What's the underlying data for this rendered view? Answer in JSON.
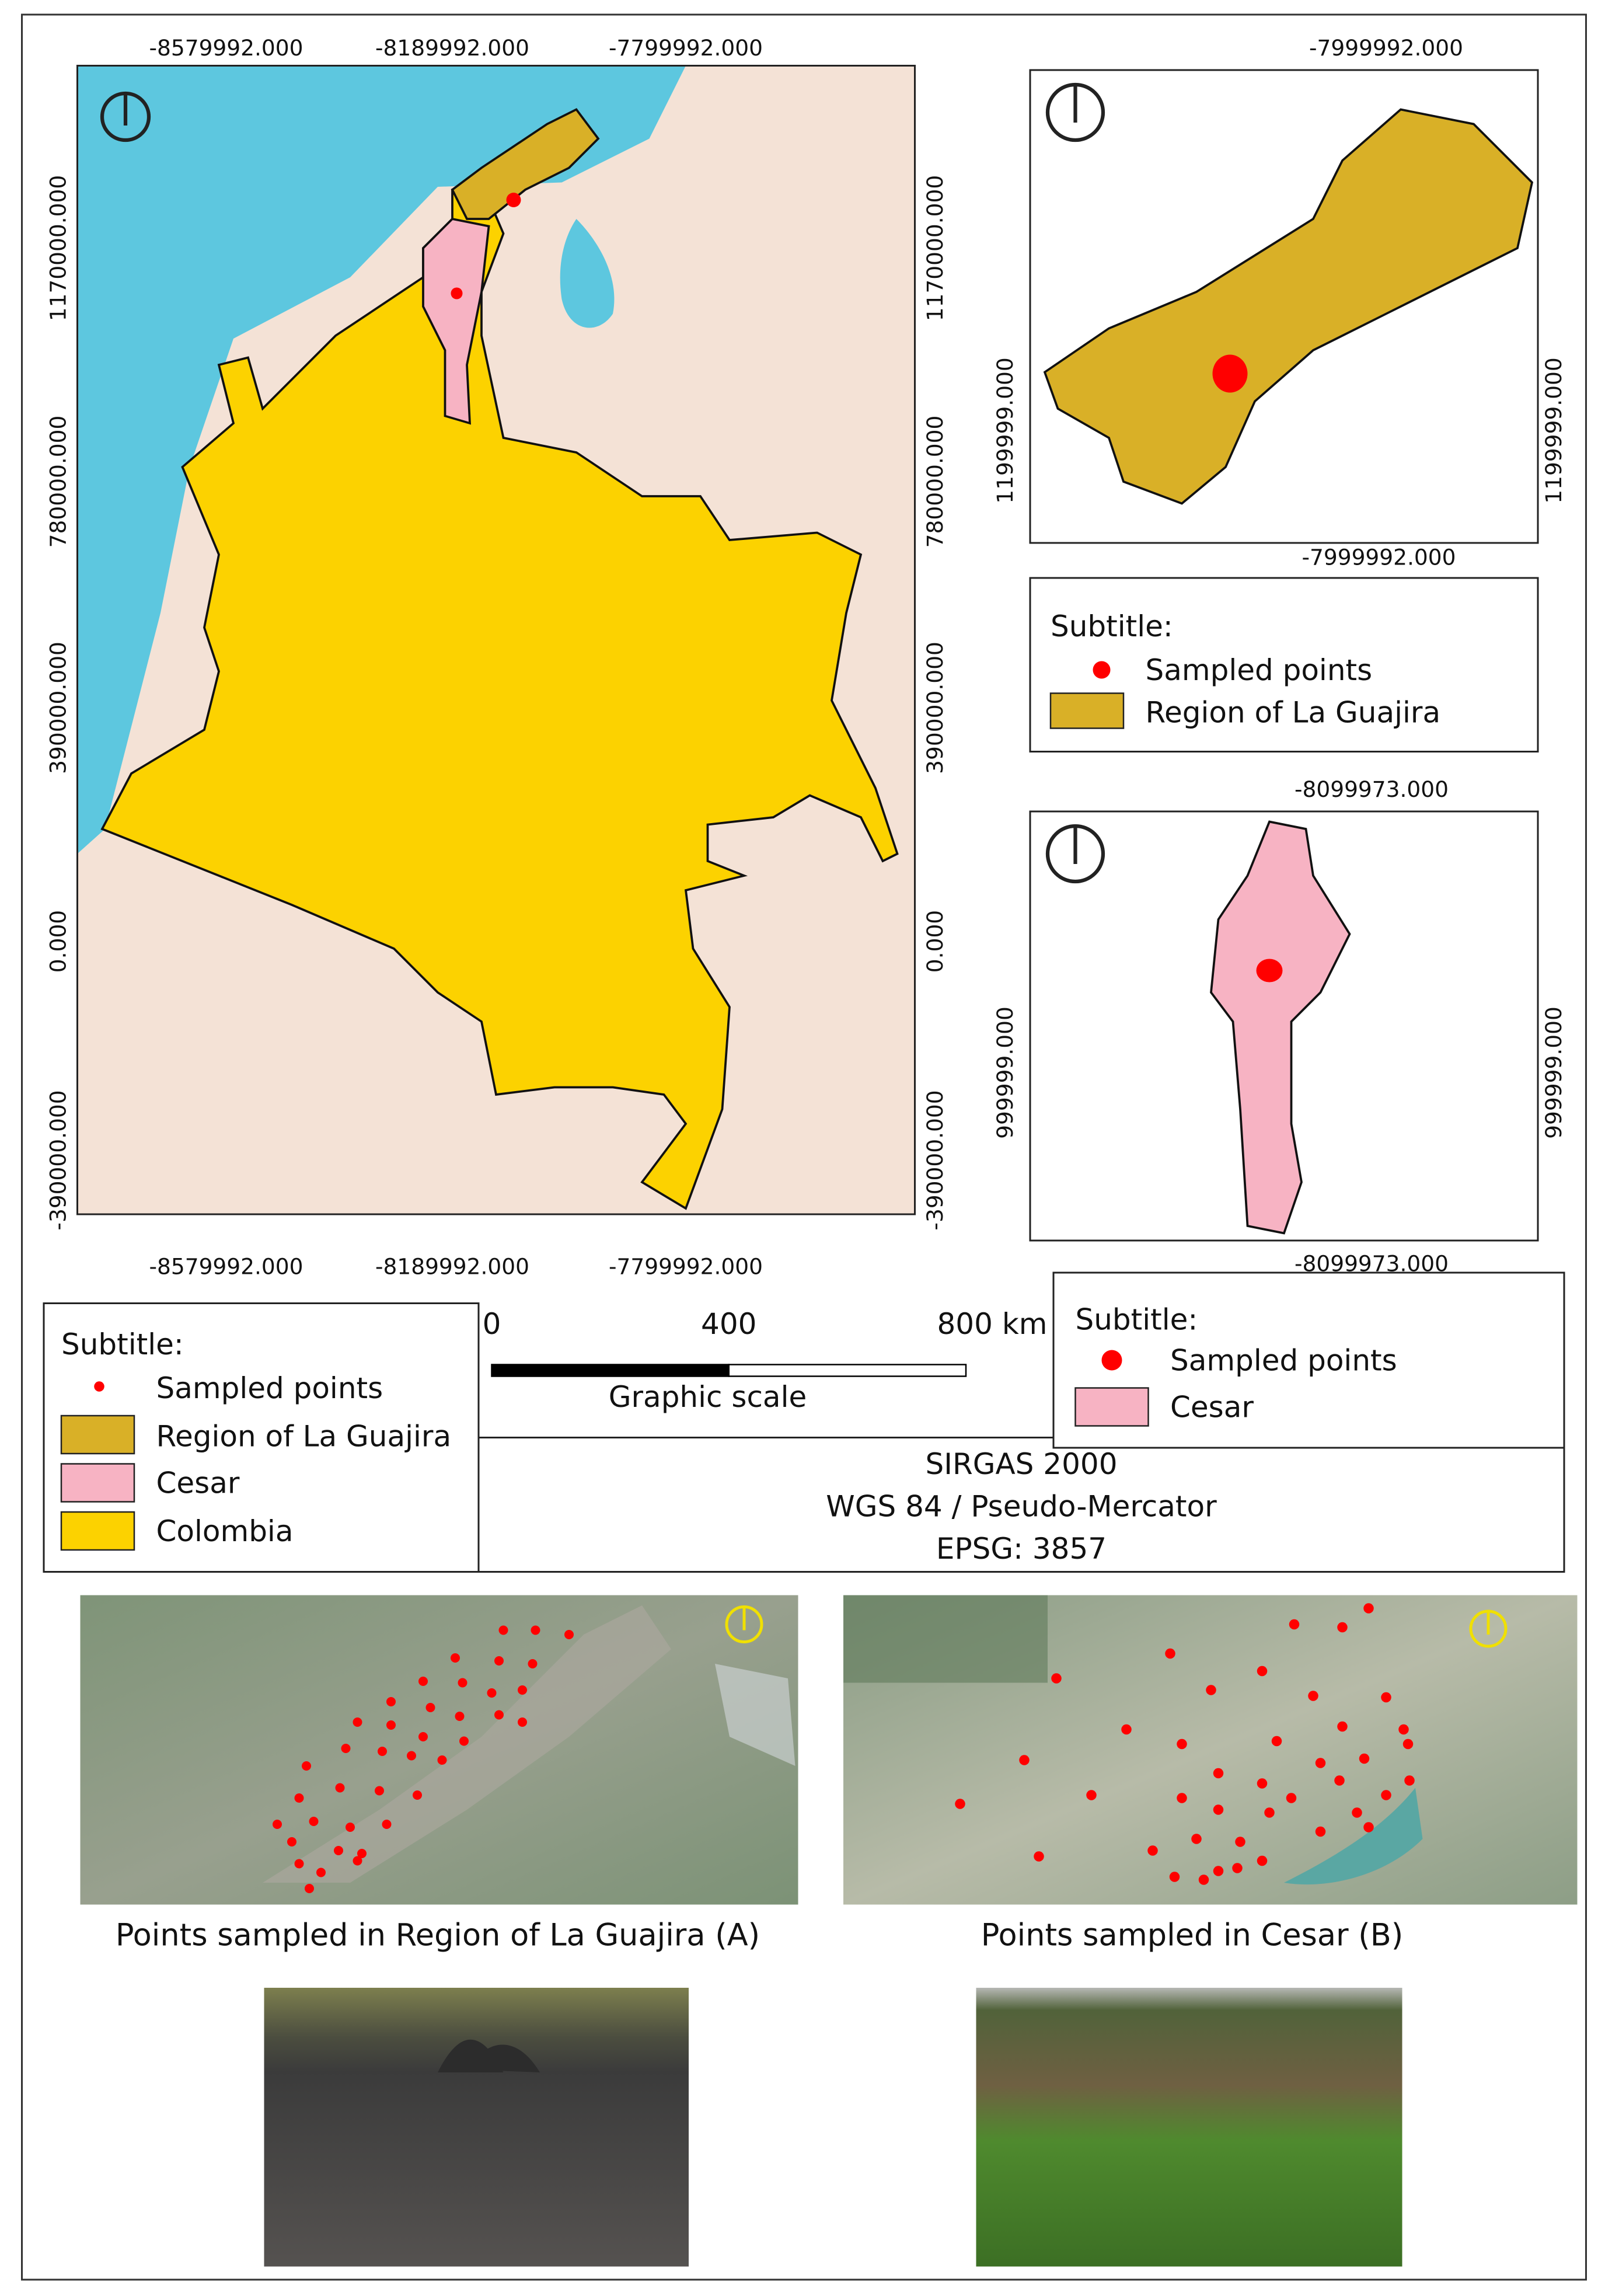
{
  "main_map": {
    "x_labels_top": [
      "-8579992.000",
      "-8189992.000",
      "-7799992.000"
    ],
    "x_labels_bottom": [
      "-8579992.000",
      "-8189992.000",
      "-7799992.000"
    ],
    "y_labels_left": [
      "1170000.000",
      "780000.000",
      "390000.000",
      "0.000",
      "-390000.000"
    ],
    "y_labels_right": [
      "1170000.000",
      "780000.000",
      "390000.000",
      "0.000",
      "-390000.000"
    ]
  },
  "inset_guajira": {
    "x_label_top": "-7999992.000",
    "x_label_bottom": "-7999992.000",
    "y_label_left": "1199999.000",
    "y_label_right": "1199999.000"
  },
  "legend_guajira": {
    "title": "Subtitle:",
    "items": [
      "Sampled points",
      "Region of La Guajira"
    ]
  },
  "inset_cesar": {
    "x_label_top": "-8099973.000",
    "x_label_bottom": "-8099973.000",
    "y_label_left": "999999.000",
    "y_label_right": "999999.000"
  },
  "legend_main": {
    "title": "Subtitle:",
    "items": [
      "Sampled points",
      "Region of La Guajira",
      "Cesar",
      "Colombia"
    ]
  },
  "scale_bar": {
    "ticks": [
      0,
      400,
      {
        "value": 800,
        "label": "800 km"
      }
    ],
    "label": "Graphic scale"
  },
  "projection": {
    "lines": [
      "SIRGAS 2000",
      "WGS 84 / Pseudo-Mercator",
      "EPSG: 3857"
    ]
  },
  "legend_cesar": {
    "title": "Subtitle:",
    "items": [
      "Sampled points",
      "Cesar"
    ]
  },
  "captions": [
    "Points sampled in Region of La Guajira (A)",
    "Points sampled in Cesar (B)"
  ]
}
